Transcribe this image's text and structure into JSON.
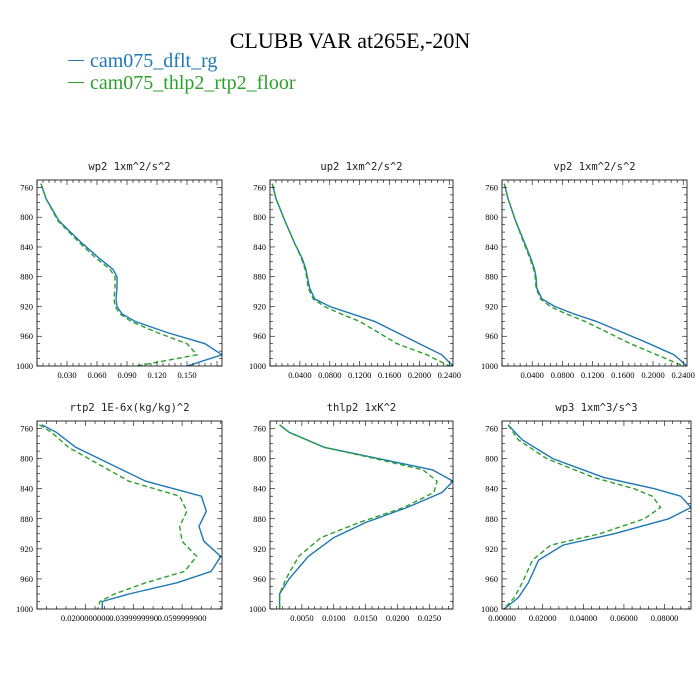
{
  "title": "CLUBB VAR at265E,-20N",
  "legend": [
    {
      "label": "cam075_dflt_rg",
      "color": "#1f77b4"
    },
    {
      "label": "cam075_thlp2_rtp2_floor",
      "color": "#2ca02c"
    }
  ],
  "chart_data": [
    {
      "type": "line",
      "title": "wp2  1xm^2/s^2",
      "y_ticks": [
        760,
        800,
        840,
        880,
        920,
        960,
        1000
      ],
      "ylim": [
        1000,
        750
      ],
      "xlim": [
        0,
        0.185
      ],
      "x_ticks": [
        0.03,
        0.06,
        0.09,
        0.12,
        0.15
      ],
      "x_tick_labels": [
        "0.030",
        "0.060",
        "0.090",
        "0.120",
        "0.150"
      ],
      "series": [
        {
          "color": "#1f77b4",
          "dash": "",
          "x": [
            0.004,
            0.009,
            0.022,
            0.045,
            0.062,
            0.076,
            0.08,
            0.08,
            0.079,
            0.08,
            0.085,
            0.098,
            0.13,
            0.168,
            0.185,
            0.15
          ],
          "y": [
            755,
            775,
            805,
            835,
            855,
            870,
            880,
            895,
            910,
            920,
            930,
            940,
            955,
            970,
            985,
            1000
          ]
        },
        {
          "color": "#2ca02c",
          "dash": "5,3",
          "x": [
            0.004,
            0.009,
            0.021,
            0.043,
            0.059,
            0.073,
            0.078,
            0.078,
            0.077,
            0.078,
            0.083,
            0.094,
            0.12,
            0.15,
            0.16,
            0.1
          ],
          "y": [
            755,
            775,
            805,
            835,
            855,
            870,
            880,
            895,
            910,
            920,
            930,
            940,
            955,
            970,
            985,
            1000
          ]
        }
      ]
    },
    {
      "type": "line",
      "title": "up2  1xm^2/s^2",
      "y_ticks": [
        760,
        800,
        840,
        880,
        920,
        960,
        1000
      ],
      "ylim": [
        1000,
        750
      ],
      "xlim": [
        0,
        0.245
      ],
      "x_ticks": [
        0.04,
        0.08,
        0.12,
        0.16,
        0.2,
        0.24
      ],
      "x_tick_labels": [
        "0.0400",
        "0.0800",
        "0.1200",
        "0.1600",
        "0.2000",
        "0.2400"
      ],
      "series": [
        {
          "color": "#1f77b4",
          "dash": "",
          "x": [
            0.003,
            0.008,
            0.02,
            0.033,
            0.043,
            0.048,
            0.05,
            0.053,
            0.06,
            0.08,
            0.11,
            0.14,
            0.17,
            0.2,
            0.23,
            0.245
          ],
          "y": [
            755,
            775,
            805,
            835,
            855,
            870,
            880,
            895,
            910,
            920,
            930,
            940,
            955,
            970,
            985,
            1000
          ]
        },
        {
          "color": "#2ca02c",
          "dash": "5,3",
          "x": [
            0.003,
            0.008,
            0.02,
            0.033,
            0.042,
            0.047,
            0.049,
            0.051,
            0.058,
            0.073,
            0.095,
            0.12,
            0.145,
            0.17,
            0.21,
            0.24
          ],
          "y": [
            755,
            775,
            805,
            835,
            855,
            870,
            880,
            895,
            910,
            920,
            930,
            940,
            955,
            970,
            985,
            1000
          ]
        }
      ]
    },
    {
      "type": "line",
      "title": "vp2  1xm^2/s^2",
      "y_ticks": [
        760,
        800,
        840,
        880,
        920,
        960,
        1000
      ],
      "ylim": [
        1000,
        750
      ],
      "xlim": [
        0,
        0.245
      ],
      "x_ticks": [
        0.04,
        0.08,
        0.12,
        0.16,
        0.2,
        0.24
      ],
      "x_tick_labels": [
        "0.0400",
        "0.0800",
        "0.1200",
        "0.1600",
        "0.2000",
        "0.2400"
      ],
      "series": [
        {
          "color": "#1f77b4",
          "dash": "",
          "x": [
            0.003,
            0.008,
            0.018,
            0.03,
            0.038,
            0.043,
            0.045,
            0.046,
            0.053,
            0.07,
            0.095,
            0.125,
            0.16,
            0.195,
            0.228,
            0.245
          ],
          "y": [
            755,
            775,
            805,
            835,
            855,
            870,
            880,
            895,
            910,
            920,
            930,
            940,
            955,
            970,
            985,
            1000
          ]
        },
        {
          "color": "#2ca02c",
          "dash": "5,3",
          "x": [
            0.003,
            0.008,
            0.018,
            0.029,
            0.037,
            0.042,
            0.044,
            0.045,
            0.051,
            0.064,
            0.085,
            0.11,
            0.14,
            0.17,
            0.205,
            0.24
          ],
          "y": [
            755,
            775,
            805,
            835,
            855,
            870,
            880,
            895,
            910,
            920,
            930,
            940,
            955,
            970,
            985,
            1000
          ]
        }
      ]
    },
    {
      "type": "line",
      "title": "rtp2  1E-6x(kg/kg)^2",
      "y_ticks": [
        760,
        800,
        840,
        880,
        920,
        960,
        1000
      ],
      "ylim": [
        1000,
        750
      ],
      "xlim": [
        0,
        0.0765
      ],
      "x_ticks": [
        0.02,
        0.04,
        0.06
      ],
      "x_tick_labels": [
        "0.0200000000",
        "0.0399999990",
        "0.0599999900"
      ],
      "series": [
        {
          "color": "#1f77b4",
          "dash": "",
          "x": [
            0.002,
            0.008,
            0.016,
            0.045,
            0.068,
            0.07,
            0.067,
            0.069,
            0.076,
            0.072,
            0.058,
            0.038,
            0.027,
            0.027
          ],
          "y": [
            755,
            765,
            785,
            830,
            850,
            870,
            890,
            910,
            930,
            950,
            965,
            980,
            990,
            1000
          ]
        },
        {
          "color": "#2ca02c",
          "dash": "5,3",
          "x": [
            0.001,
            0.006,
            0.013,
            0.038,
            0.059,
            0.062,
            0.059,
            0.06,
            0.066,
            0.061,
            0.045,
            0.032,
            0.026,
            0.025
          ],
          "y": [
            755,
            765,
            785,
            830,
            850,
            870,
            890,
            910,
            930,
            950,
            965,
            980,
            990,
            1000
          ]
        }
      ]
    },
    {
      "type": "line",
      "title": "thlp2  1xK^2",
      "y_ticks": [
        760,
        800,
        840,
        880,
        920,
        960,
        1000
      ],
      "ylim": [
        1000,
        750
      ],
      "xlim": [
        0,
        0.0287
      ],
      "x_ticks": [
        0.005,
        0.01,
        0.015,
        0.02,
        0.025
      ],
      "x_tick_labels": [
        "0.0050",
        "0.0100",
        "0.0150",
        "0.0200",
        "0.0250"
      ],
      "series": [
        {
          "color": "#1f77b4",
          "dash": "",
          "x": [
            0.0015,
            0.003,
            0.0085,
            0.017,
            0.0255,
            0.0287,
            0.027,
            0.0215,
            0.015,
            0.01,
            0.006,
            0.003,
            0.0015,
            0.0015
          ],
          "y": [
            755,
            765,
            785,
            800,
            815,
            830,
            845,
            865,
            885,
            905,
            930,
            960,
            980,
            1000
          ]
        },
        {
          "color": "#2ca02c",
          "dash": "5,3",
          "x": [
            0.0015,
            0.003,
            0.0085,
            0.0165,
            0.024,
            0.0262,
            0.0257,
            0.021,
            0.014,
            0.008,
            0.0045,
            0.0025,
            0.0015,
            0.0015
          ],
          "y": [
            755,
            765,
            785,
            800,
            815,
            830,
            845,
            865,
            885,
            905,
            930,
            960,
            980,
            1000
          ]
        }
      ]
    },
    {
      "type": "line",
      "title": "wp3  1xm^3/s^3",
      "y_ticks": [
        760,
        800,
        840,
        880,
        920,
        960,
        1000
      ],
      "ylim": [
        1000,
        750
      ],
      "xlim": [
        0,
        0.093
      ],
      "x_ticks": [
        0.0,
        0.02,
        0.04,
        0.06,
        0.08
      ],
      "x_tick_labels": [
        "0.00000",
        "0.02000",
        "0.04000",
        "0.06000",
        "0.08000"
      ],
      "series": [
        {
          "color": "#1f77b4",
          "dash": "",
          "x": [
            0.003,
            0.01,
            0.025,
            0.05,
            0.075,
            0.088,
            0.093,
            0.082,
            0.055,
            0.03,
            0.018,
            0.013,
            0.008,
            0.001
          ],
          "y": [
            755,
            775,
            800,
            825,
            840,
            850,
            865,
            880,
            900,
            915,
            935,
            965,
            985,
            1000
          ]
        },
        {
          "color": "#2ca02c",
          "dash": "5,3",
          "x": [
            0.003,
            0.008,
            0.022,
            0.045,
            0.065,
            0.074,
            0.078,
            0.07,
            0.048,
            0.024,
            0.015,
            0.01,
            0.006,
            0.001
          ],
          "y": [
            755,
            775,
            800,
            825,
            840,
            850,
            865,
            880,
            900,
            915,
            935,
            965,
            985,
            1000
          ]
        }
      ]
    }
  ]
}
